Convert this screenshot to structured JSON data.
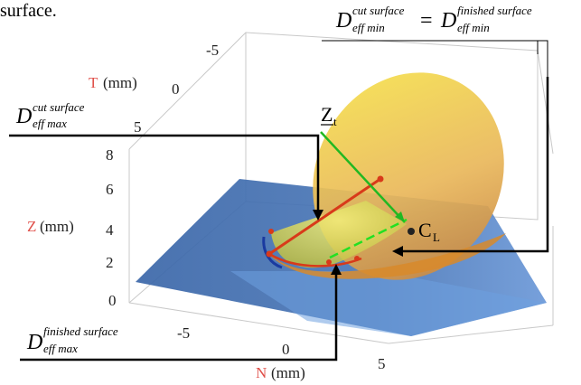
{
  "caption_fragment": "surface.",
  "axes": {
    "t_letter": "T",
    "t_unit": "(mm)",
    "t_ticks": [
      "-5",
      "0",
      "5"
    ],
    "z_letter": "Z",
    "z_unit": "(mm)",
    "z_ticks": [
      "8",
      "6",
      "4",
      "2",
      "0"
    ],
    "n_letter": "N",
    "n_unit": "(mm)",
    "n_ticks": [
      "-5",
      "0",
      "5"
    ]
  },
  "labels": {
    "d_main": "D",
    "d_sub": "eff min",
    "d_sub_max": "eff max",
    "equals": "=",
    "cut_surface": "cut surface",
    "finished_surface": "finished surface",
    "zt_main": "Z",
    "zt_sub": "t",
    "cl_main": "C",
    "cl_sub": "L"
  },
  "colors": {
    "axis_letter": "#e0504a",
    "tool_surface": "#e8c050",
    "plane": "#3b67a8",
    "cut_line": "#d83a1a",
    "tool_axis": "#22b822",
    "box": "#c9c9c9"
  }
}
